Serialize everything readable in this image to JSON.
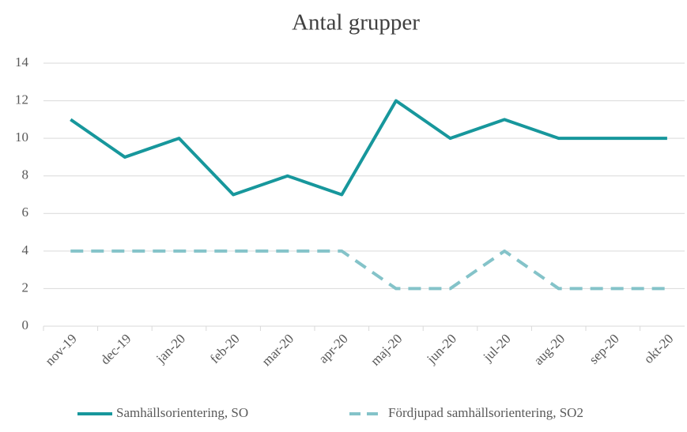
{
  "chart_data": {
    "type": "line",
    "title": "Antal grupper",
    "categories": [
      "nov-19",
      "dec-19",
      "jan-20",
      "feb-20",
      "mar-20",
      "apr-20",
      "maj-20",
      "jun-20",
      "jul-20",
      "aug-20",
      "sep-20",
      "okt-20"
    ],
    "series": [
      {
        "name": "Samhällsorientering, SO",
        "color": "#17979c",
        "dash": false,
        "values": [
          11,
          9,
          10,
          7,
          8,
          7,
          12,
          10,
          11,
          10,
          10,
          10
        ]
      },
      {
        "name": "Fördjupad samhällsorientering, SO2",
        "color": "#84c3c9",
        "dash": true,
        "values": [
          4,
          4,
          4,
          4,
          4,
          4,
          2,
          2,
          4,
          2,
          2,
          2
        ]
      }
    ],
    "ylim": [
      0,
      14
    ],
    "yticks": [
      0,
      2,
      4,
      6,
      8,
      10,
      12,
      14
    ],
    "grid": true,
    "legend": "bottom"
  }
}
